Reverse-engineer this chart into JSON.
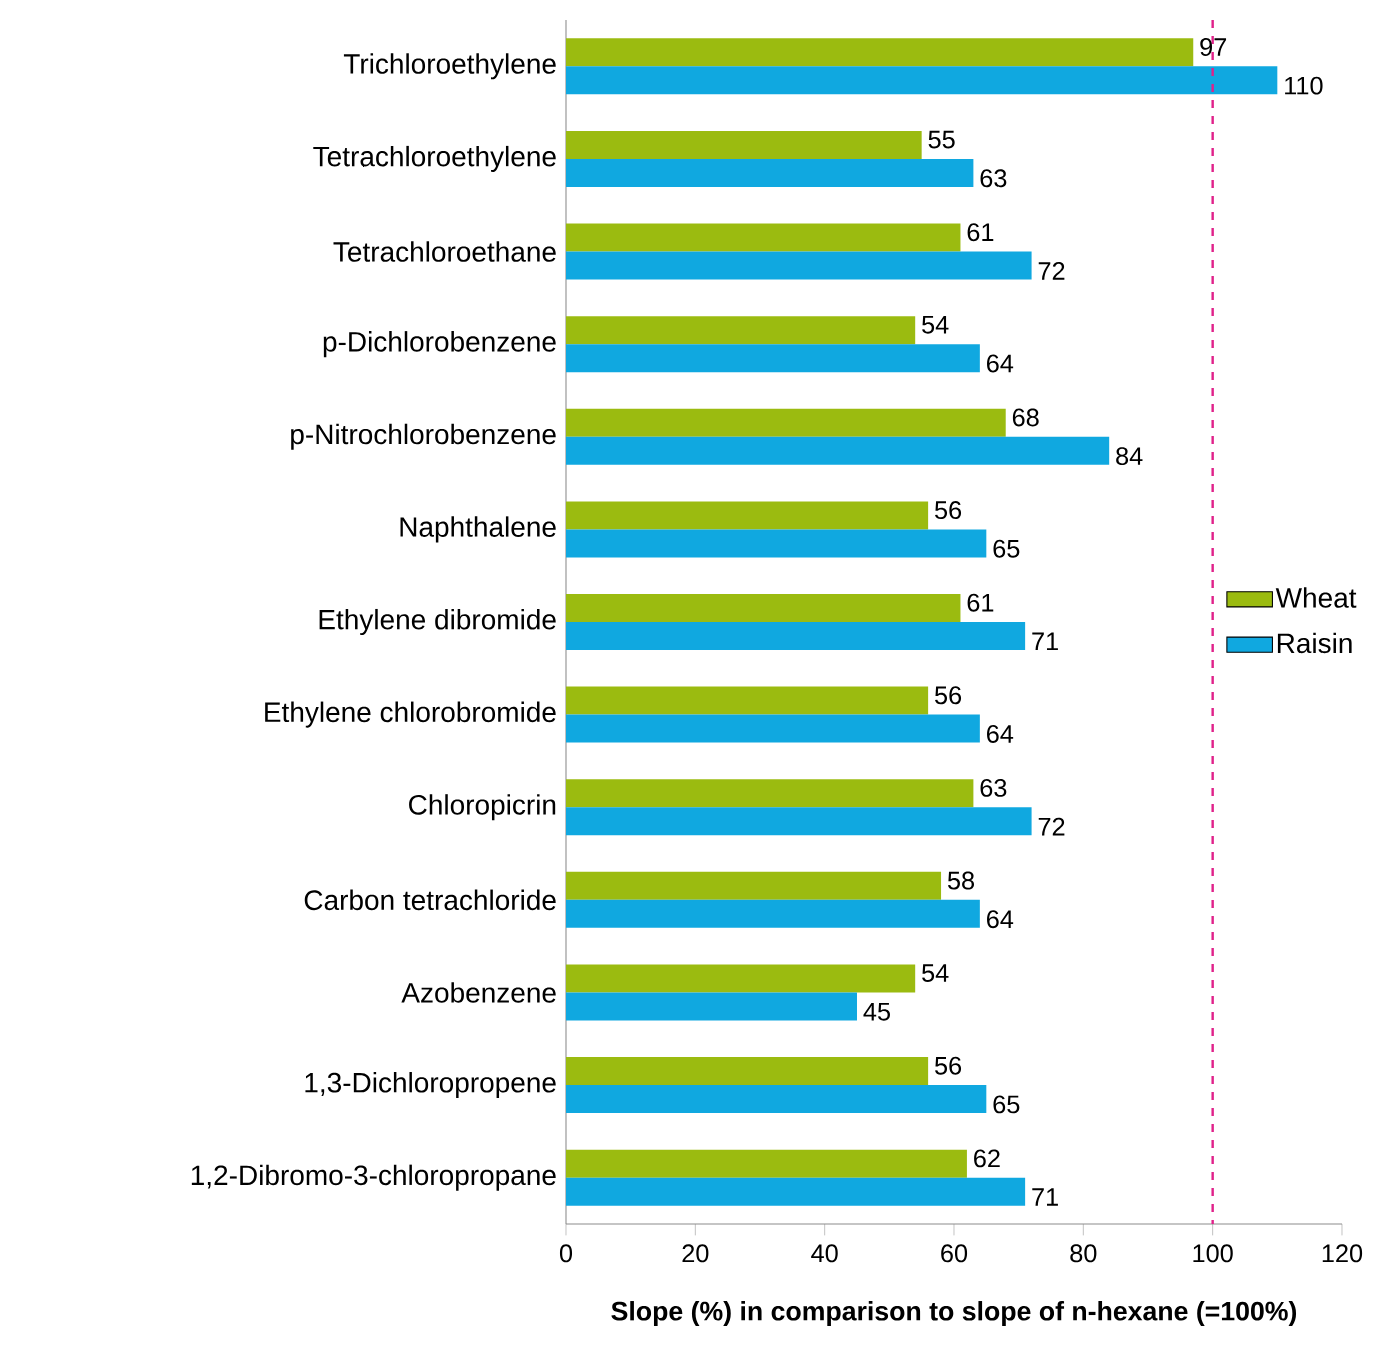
{
  "chart_data": {
    "type": "bar",
    "orientation": "horizontal",
    "categories": [
      "Trichloroethylene",
      "Tetrachloroethylene",
      "Tetrachloroethane",
      "p-Dichlorobenzene",
      "p-Nitrochlorobenzene",
      "Naphthalene",
      "Ethylene dibromide",
      "Ethylene chlorobromide",
      "Chloropicrin",
      "Carbon tetrachloride",
      "Azobenzene",
      "1,3-Dichloropropene",
      "1,2-Dibromo-3-chloropropane"
    ],
    "series": [
      {
        "name": "Wheat",
        "color": "#9bbb10",
        "values": [
          97,
          55,
          61,
          54,
          68,
          56,
          61,
          56,
          63,
          58,
          54,
          56,
          62
        ]
      },
      {
        "name": "Raisin",
        "color": "#10a8e0",
        "values": [
          110,
          63,
          72,
          64,
          84,
          65,
          71,
          64,
          72,
          64,
          45,
          65,
          71
        ]
      }
    ],
    "xlim": [
      0,
      120
    ],
    "xticks": [
      0,
      20,
      40,
      60,
      80,
      100,
      120
    ],
    "xlabel": "Slope (%) in comparison to slope of n-hexane (=100%)",
    "ref_lines": [
      {
        "axis": "x",
        "value": 100,
        "color": "#e0218a",
        "line_style": "dashed"
      }
    ],
    "data_labels": true,
    "legend": "right"
  }
}
